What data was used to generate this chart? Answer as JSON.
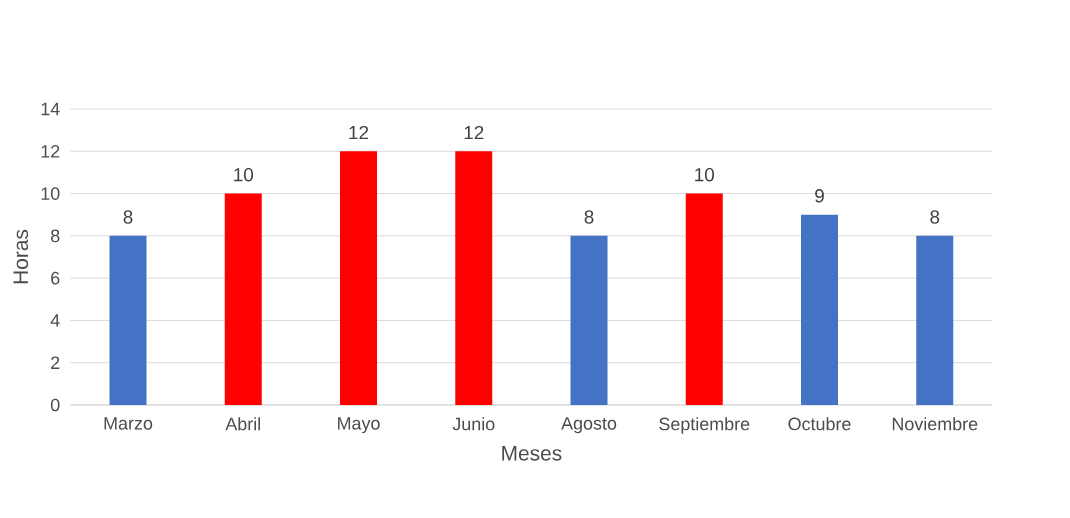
{
  "chart_data": {
    "type": "bar",
    "xlabel": "Meses",
    "ylabel": "Horas",
    "categories": [
      "Marzo",
      "Abril",
      "Mayo",
      "Junio",
      "Agosto",
      "Septiembre",
      "Octubre",
      "Noviembre"
    ],
    "values": [
      8,
      10,
      12,
      12,
      8,
      10,
      9,
      8
    ],
    "colors": [
      "#4472c4",
      "#ff0000",
      "#ff0000",
      "#ff0000",
      "#4472c4",
      "#ff0000",
      "#4472c4",
      "#4472c4"
    ],
    "ylim": [
      0,
      14
    ],
    "yticks": [
      0,
      2,
      4,
      6,
      8,
      10,
      12,
      14
    ],
    "grid": "y",
    "data_labels": true
  }
}
